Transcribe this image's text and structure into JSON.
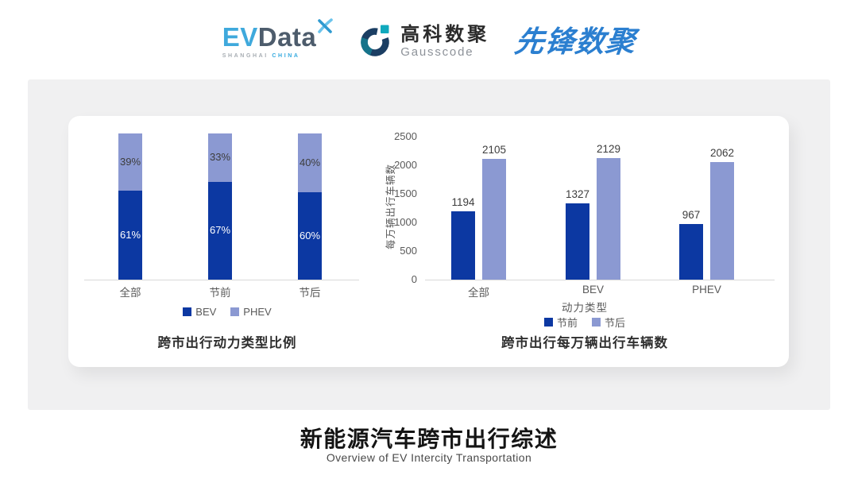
{
  "header": {
    "logos": {
      "evdata": {
        "ev": "EV",
        "data": "Data",
        "sub_left": "SHANGHAI",
        "sub_right": "CHINA"
      },
      "gausscode": {
        "cn": "高科数聚",
        "en": "Gausscode"
      },
      "pioneer": {
        "text": "先锋数聚"
      }
    }
  },
  "footer": {
    "title": "新能源汽车跨市出行综述",
    "subtitle": "Overview of EV Intercity Transportation"
  },
  "colors": {
    "series_dark_blue": "#0c38a2",
    "series_light_blue": "#8b99d2",
    "panel_background": "#f0f0f1",
    "axis_text": "#595959",
    "evdata_blue": "#3fa9dc",
    "evdata_slate": "#4d5c6c",
    "gausscode_navy": "#1b3e63",
    "gausscode_teal": "#10a9bd",
    "pioneer_blue": "#2b7fd0"
  },
  "chart_data": [
    {
      "type": "bar",
      "subtype": "stacked-percent",
      "title": "跨市出行动力类型比例",
      "categories": [
        "全部",
        "节前",
        "节后"
      ],
      "series": [
        {
          "name": "BEV",
          "color": "#0c38a2",
          "label_color": "#ffffff",
          "values": [
            61,
            67,
            60
          ]
        },
        {
          "name": "PHEV",
          "color": "#8b99d2",
          "label_color": "#3d3d3d",
          "values": [
            39,
            33,
            40
          ]
        }
      ],
      "value_suffix": "%",
      "ylim": [
        0,
        100
      ],
      "legend_position": "bottom",
      "grid": false
    },
    {
      "type": "bar",
      "subtype": "grouped",
      "title": "跨市出行每万辆出行车辆数",
      "categories": [
        "全部",
        "BEV",
        "PHEV"
      ],
      "xlabel": "动力类型",
      "ylabel": "每万辆出行车辆数",
      "ylim": [
        0,
        2500
      ],
      "yticks": [
        0,
        500,
        1000,
        1500,
        2000,
        2500
      ],
      "series": [
        {
          "name": "节前",
          "color": "#0c38a2",
          "values": [
            1194,
            1327,
            967
          ]
        },
        {
          "name": "节后",
          "color": "#8b99d2",
          "values": [
            2105,
            2129,
            2062
          ]
        }
      ],
      "legend_position": "bottom",
      "grid": false
    }
  ]
}
